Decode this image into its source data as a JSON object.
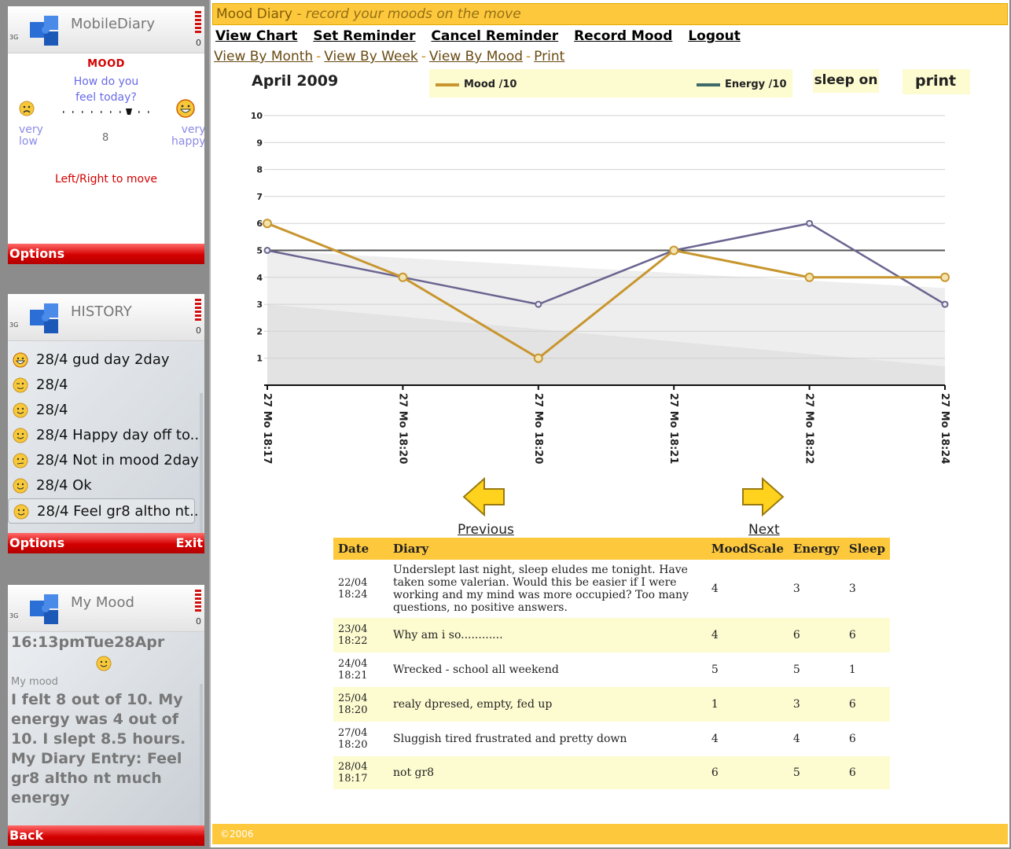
{
  "phones": {
    "mood": {
      "title": "MobileDiary",
      "heading": "MOOD",
      "question_1": "How do you",
      "question_2": "feel today?",
      "low_1": "very",
      "low_2": "low",
      "high_1": "very",
      "high_2": "happy",
      "value": "8",
      "hint": "Left/Right to move",
      "options": "Options"
    },
    "history": {
      "title": "HISTORY",
      "items": [
        {
          "text": "28/4 gud day 2day",
          "icon": "grin-smiley-icon"
        },
        {
          "text": "28/4",
          "icon": "wink-smiley-icon"
        },
        {
          "text": "28/4",
          "icon": "smiley-icon"
        },
        {
          "text": "28/4 Happy day off to...",
          "icon": "smiley-icon"
        },
        {
          "text": "28/4 Not in mood 2day",
          "icon": "neutral-smiley-icon"
        },
        {
          "text": "28/4 Ok",
          "icon": "smiley-icon"
        },
        {
          "text": "28/4 Feel gr8 altho nt...",
          "icon": "smiley-icon"
        }
      ],
      "options": "Options",
      "exit": "Exit"
    },
    "my_mood": {
      "title": "My Mood",
      "time": "16:13pmTue28Apr",
      "label": "My mood",
      "text": "I felt 8 out of 10. My energy was 4 out of 10. I slept 8.5 hours. My Diary Entry: Feel gr8 altho nt much energy",
      "back": "Back"
    },
    "battery_level": "0",
    "signal": "3G"
  },
  "web": {
    "brand": "Mood Diary",
    "tagline": "- record your moods on the move",
    "nav": [
      "View Chart",
      "Set Reminder",
      "Cancel Reminder",
      "Record Mood",
      "Logout"
    ],
    "subnav": [
      "View By Month",
      "View By Week",
      "View By Mood",
      "Print"
    ],
    "month": "April 2009",
    "legend_mood": "Mood /10",
    "legend_energy": "Energy /10",
    "btn_sleep": "sleep on",
    "btn_print": "print",
    "prev": "Previous",
    "next": "Next",
    "table": {
      "headers": [
        "Date",
        "Diary",
        "MoodScale",
        "Energy",
        "Sleep"
      ],
      "rows": [
        {
          "date1": "22/04",
          "date2": "18:24",
          "diary": "Underslept last night, sleep eludes me tonight. Have taken some valerian. Would this be easier if I were working and my mind was more occupied? Too many questions, no positive answers.",
          "mood": "4",
          "energy": "3",
          "sleep": "3"
        },
        {
          "date1": "23/04",
          "date2": "18:22",
          "diary": "Why am i so............",
          "mood": "4",
          "energy": "6",
          "sleep": "6"
        },
        {
          "date1": "24/04",
          "date2": "18:21",
          "diary": "Wrecked - school all weekend",
          "mood": "5",
          "energy": "5",
          "sleep": "1"
        },
        {
          "date1": "25/04",
          "date2": "18:20",
          "diary": "realy dpresed, empty, fed up",
          "mood": "1",
          "energy": "3",
          "sleep": "6"
        },
        {
          "date1": "27/04",
          "date2": "18:20",
          "diary": "Sluggish tired frustrated and pretty down",
          "mood": "4",
          "energy": "4",
          "sleep": "6"
        },
        {
          "date1": "28/04",
          "date2": "18:17",
          "diary": "not gr8",
          "mood": "6",
          "energy": "5",
          "sleep": "6"
        }
      ]
    },
    "footer": "©2006"
  },
  "colors": {
    "accent_yellow": "#fdc83b",
    "mood_line": "#c8962e",
    "energy_line": "#6a6490",
    "phone_red": "#d40000"
  },
  "chart_data": {
    "type": "line",
    "title": "April 2009",
    "x": [
      "27 Mo 18:17",
      "27 Mo 18:20",
      "27 Mo 18:20",
      "27 Mo 18:21",
      "27 Mo 18:22",
      "27 Mo 18:24"
    ],
    "series": [
      {
        "name": "Mood /10",
        "values": [
          6,
          4,
          1,
          5,
          4,
          4
        ]
      },
      {
        "name": "Energy /10",
        "values": [
          5,
          4,
          3,
          5,
          6,
          3
        ]
      }
    ],
    "reference_line": 5,
    "ylim": [
      0,
      10
    ],
    "yticks": [
      1,
      2,
      3,
      4,
      5,
      6,
      7,
      8,
      9,
      10
    ],
    "grid": true,
    "legend": "top"
  }
}
